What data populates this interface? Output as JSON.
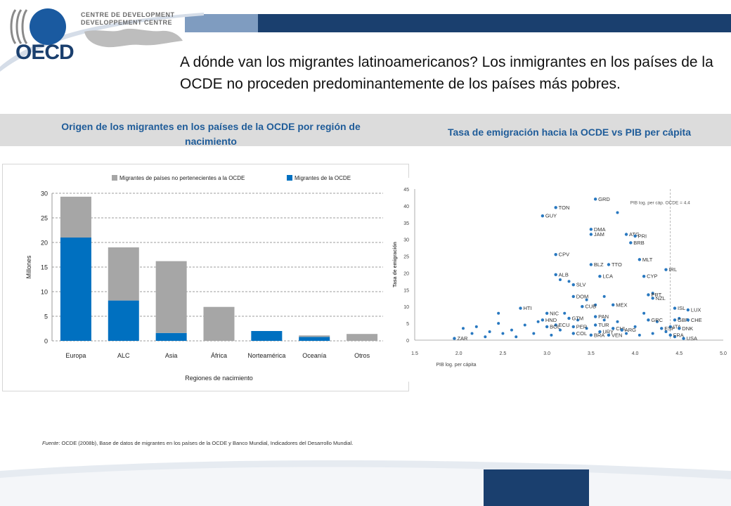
{
  "header": {
    "org_logo_text": "OECD",
    "dev_centre_lines": [
      "CENTRE DE DEVELOPMENT",
      "DEVELOPPEMENT CENTRE"
    ],
    "title": "A dónde van los migrantes latinoamericanos? Los inmigrantes en los países de la OCDE no proceden predominantemente de los países más pobres."
  },
  "panels": {
    "left_title": "Origen de los migrantes en los países de la OCDE por región de nacimiento",
    "right_title": "Tasa de emigración hacia la OCDE vs PIB per cápita"
  },
  "colors": {
    "non_oecd": "#a6a6a6",
    "oecd": "#0070c0",
    "brand_dark": "#1a3f6e",
    "subhead_text": "#1f5c99",
    "scatter_point": "#2878c0"
  },
  "chart_data": [
    {
      "type": "bar",
      "stacked": true,
      "categories": [
        "Europa",
        "ALC",
        "Asia",
        "África",
        "Norteamérica",
        "Oceanía",
        "Otros"
      ],
      "series": [
        {
          "name": "Migrantes de la OCDE",
          "values": [
            21,
            8.2,
            1.6,
            0,
            2.0,
            0.8,
            0
          ]
        },
        {
          "name": "Migrantes de países no pertenecientes a la OCDE",
          "values": [
            8.3,
            10.8,
            14.6,
            6.9,
            0,
            0.3,
            1.4
          ]
        }
      ],
      "xlabel": "Regiones de nacimiento",
      "ylabel": "Millones",
      "ylim": [
        0,
        30
      ],
      "yticks": [
        0,
        5,
        10,
        15,
        20,
        25,
        30
      ],
      "legend": "top",
      "grid": true
    },
    {
      "type": "scatter",
      "xlabel": "PIB log. per cápita",
      "ylabel": "Tasa de emigración",
      "xlim": [
        1.5,
        5.0
      ],
      "ylim": [
        0,
        45
      ],
      "xticks": [
        1.5,
        2.0,
        2.5,
        3.0,
        3.5,
        4.0,
        4.5,
        5.0
      ],
      "yticks": [
        0,
        5,
        10,
        15,
        20,
        25,
        30,
        35,
        40,
        45
      ],
      "reference_line": {
        "x": 4.4,
        "label": "PIB log. per cáp. OCDE = 4.4"
      },
      "labeled_points": [
        {
          "label": "GRD",
          "x": 3.55,
          "y": 42
        },
        {
          "label": "TON",
          "x": 3.1,
          "y": 39.5
        },
        {
          "label": "GUY",
          "x": 2.95,
          "y": 37
        },
        {
          "label": "DMA",
          "x": 3.5,
          "y": 33
        },
        {
          "label": "JAM",
          "x": 3.5,
          "y": 31.5
        },
        {
          "label": "ATG",
          "x": 3.9,
          "y": 31.5
        },
        {
          "label": "PRI",
          "x": 4.0,
          "y": 31
        },
        {
          "label": "BRB",
          "x": 3.95,
          "y": 29
        },
        {
          "label": "CPV",
          "x": 3.1,
          "y": 25.5
        },
        {
          "label": "MLT",
          "x": 4.05,
          "y": 24
        },
        {
          "label": "BLZ",
          "x": 3.5,
          "y": 22.5
        },
        {
          "label": "TTO",
          "x": 3.7,
          "y": 22.5
        },
        {
          "label": "IRL",
          "x": 4.35,
          "y": 21
        },
        {
          "label": "ALB",
          "x": 3.1,
          "y": 19.5
        },
        {
          "label": "LCA",
          "x": 3.6,
          "y": 19
        },
        {
          "label": "CYP",
          "x": 4.1,
          "y": 19
        },
        {
          "label": "SLV",
          "x": 3.3,
          "y": 16.5
        },
        {
          "label": "PRT",
          "x": 4.15,
          "y": 13.5
        },
        {
          "label": "NZL",
          "x": 4.2,
          "y": 12.5
        },
        {
          "label": "DOM",
          "x": 3.3,
          "y": 13
        },
        {
          "label": "MEX",
          "x": 3.75,
          "y": 10.5
        },
        {
          "label": "CUB",
          "x": 3.4,
          "y": 10
        },
        {
          "label": "HTI",
          "x": 2.7,
          "y": 9.5
        },
        {
          "label": "ISL",
          "x": 4.45,
          "y": 9.5
        },
        {
          "label": "LUX",
          "x": 4.6,
          "y": 9
        },
        {
          "label": "NIC",
          "x": 3.0,
          "y": 8
        },
        {
          "label": "PAN",
          "x": 3.55,
          "y": 7
        },
        {
          "label": "GTM",
          "x": 3.25,
          "y": 6.5
        },
        {
          "label": "HND",
          "x": 2.95,
          "y": 6
        },
        {
          "label": "GRC",
          "x": 4.15,
          "y": 6
        },
        {
          "label": "GBR",
          "x": 4.45,
          "y": 6
        },
        {
          "label": "CHE",
          "x": 4.6,
          "y": 6
        },
        {
          "label": "ECU",
          "x": 3.1,
          "y": 4.5
        },
        {
          "label": "BOL",
          "x": 3.0,
          "y": 4
        },
        {
          "label": "PER",
          "x": 3.3,
          "y": 4
        },
        {
          "label": "TUR",
          "x": 3.55,
          "y": 4.5
        },
        {
          "label": "CHL",
          "x": 3.75,
          "y": 3.5
        },
        {
          "label": "ARG",
          "x": 3.85,
          "y": 3
        },
        {
          "label": "ITA",
          "x": 4.4,
          "y": 4
        },
        {
          "label": "ESP",
          "x": 4.3,
          "y": 3.5
        },
        {
          "label": "DNK",
          "x": 4.5,
          "y": 3.5
        },
        {
          "label": "COL",
          "x": 3.3,
          "y": 2
        },
        {
          "label": "BRA",
          "x": 3.5,
          "y": 1.5
        },
        {
          "label": "URY",
          "x": 3.6,
          "y": 2.5
        },
        {
          "label": "VEN",
          "x": 3.7,
          "y": 1.5
        },
        {
          "label": "FRA",
          "x": 4.4,
          "y": 1.5
        },
        {
          "label": "USA",
          "x": 4.55,
          "y": 0.5
        },
        {
          "label": "ZAR",
          "x": 1.95,
          "y": 0.5
        }
      ],
      "unlabeled_points": [
        {
          "x": 2.05,
          "y": 3.5
        },
        {
          "x": 2.15,
          "y": 2
        },
        {
          "x": 2.2,
          "y": 4
        },
        {
          "x": 2.3,
          "y": 1
        },
        {
          "x": 2.35,
          "y": 2.5
        },
        {
          "x": 2.45,
          "y": 5
        },
        {
          "x": 2.5,
          "y": 2
        },
        {
          "x": 2.6,
          "y": 3
        },
        {
          "x": 2.65,
          "y": 1
        },
        {
          "x": 2.75,
          "y": 4.5
        },
        {
          "x": 2.85,
          "y": 2
        },
        {
          "x": 2.9,
          "y": 5.5
        },
        {
          "x": 3.05,
          "y": 1.5
        },
        {
          "x": 3.15,
          "y": 3
        },
        {
          "x": 3.2,
          "y": 8
        },
        {
          "x": 3.35,
          "y": 6
        },
        {
          "x": 3.45,
          "y": 3.5
        },
        {
          "x": 3.55,
          "y": 10.5
        },
        {
          "x": 3.65,
          "y": 6
        },
        {
          "x": 3.8,
          "y": 5.5
        },
        {
          "x": 3.9,
          "y": 2
        },
        {
          "x": 4.0,
          "y": 4
        },
        {
          "x": 4.05,
          "y": 1.5
        },
        {
          "x": 4.1,
          "y": 8
        },
        {
          "x": 4.2,
          "y": 2
        },
        {
          "x": 4.25,
          "y": 5.5
        },
        {
          "x": 4.35,
          "y": 2.5
        },
        {
          "x": 4.45,
          "y": 1
        },
        {
          "x": 4.5,
          "y": 6.5
        },
        {
          "x": 3.8,
          "y": 38
        },
        {
          "x": 3.15,
          "y": 18
        },
        {
          "x": 3.25,
          "y": 17.5
        },
        {
          "x": 2.45,
          "y": 8
        },
        {
          "x": 3.45,
          "y": 12
        },
        {
          "x": 3.65,
          "y": 13
        },
        {
          "x": 4.2,
          "y": 14
        }
      ]
    }
  ],
  "footer": {
    "source_label": "Fuente",
    "source_text": ": OCDE (2008b), Base de datos de migrantes en los países de la OCDE y Banco Mundial, Indicadores del Desarrollo Mundial."
  }
}
